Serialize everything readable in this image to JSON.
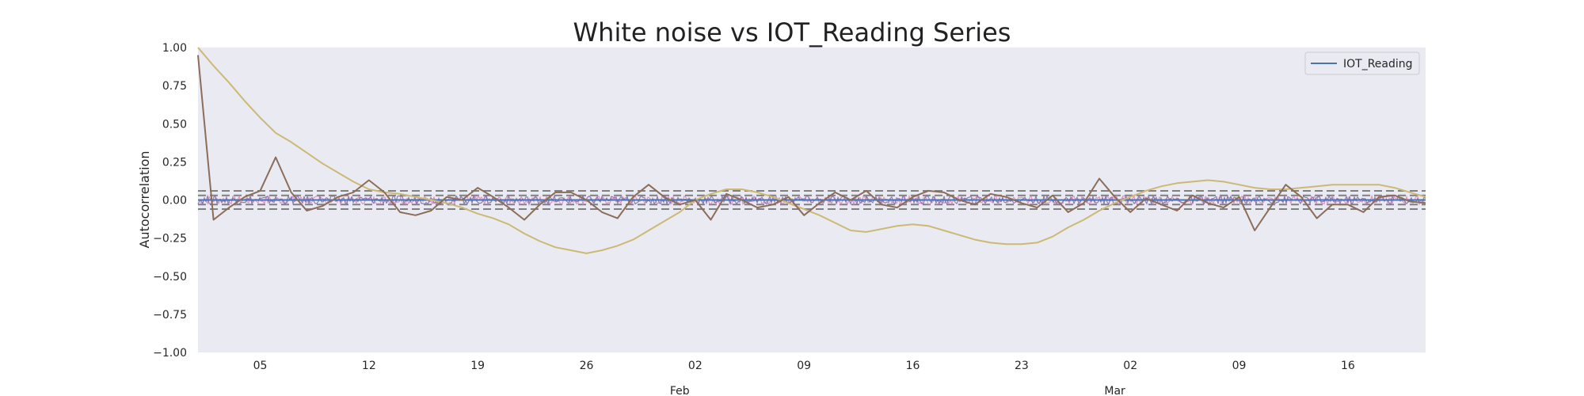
{
  "chart_data": {
    "type": "line",
    "title": "White noise vs IOT_Reading Series",
    "xlabel": "",
    "ylabel": "Autocorrelation",
    "x_range": [
      "2022-01-01",
      "2022-03-21"
    ],
    "ylim": [
      -1.0,
      1.0
    ],
    "y_ticks": [
      -1.0,
      -0.75,
      -0.5,
      -0.25,
      0.0,
      0.25,
      0.5,
      0.75,
      1.0
    ],
    "y_tick_labels": [
      "−1.00",
      "−0.75",
      "−0.50",
      "−0.25",
      "0.00",
      "0.25",
      "0.50",
      "0.75",
      "1.00"
    ],
    "x_ticks": [
      {
        "date": "2022-01-05",
        "label": "05"
      },
      {
        "date": "2022-01-12",
        "label": "12"
      },
      {
        "date": "2022-01-19",
        "label": "19"
      },
      {
        "date": "2022-01-26",
        "label": "26"
      },
      {
        "date": "2022-02-02",
        "label": "02"
      },
      {
        "date": "2022-02-09",
        "label": "09"
      },
      {
        "date": "2022-02-16",
        "label": "16"
      },
      {
        "date": "2022-02-23",
        "label": "23"
      },
      {
        "date": "2022-03-02",
        "label": "02"
      },
      {
        "date": "2022-03-09",
        "label": "09"
      },
      {
        "date": "2022-03-16",
        "label": "16"
      }
    ],
    "x_major_labels": [
      {
        "date": "2022-02-01",
        "label": "Feb"
      },
      {
        "date": "2022-03-01",
        "label": "Mar"
      }
    ],
    "confidence_bands": {
      "inner": [
        -0.03,
        0.03
      ],
      "outer": [
        -0.06,
        0.06
      ],
      "style": "dashed",
      "color": "#808080"
    },
    "zero_line": {
      "y": 0.0,
      "color": "#111111"
    },
    "grid": false,
    "background": "#EAEAF2",
    "legend": {
      "placement": "top-right",
      "entries": [
        {
          "label": "IOT_Reading",
          "color": "#4C72B0"
        }
      ]
    },
    "series": [
      {
        "name": "IOT_Reading",
        "color": "#4C72B0",
        "x": [
          "2022-01-01",
          "2022-03-21"
        ],
        "y": [
          0.0,
          0.0
        ]
      },
      {
        "color": "#CCB974",
        "x": [
          "2022-01-01",
          "2022-01-02",
          "2022-01-03",
          "2022-01-04",
          "2022-01-05",
          "2022-01-06",
          "2022-01-07",
          "2022-01-08",
          "2022-01-09",
          "2022-01-10",
          "2022-01-11",
          "2022-01-12",
          "2022-01-13",
          "2022-01-14",
          "2022-01-15",
          "2022-01-16",
          "2022-01-17",
          "2022-01-18",
          "2022-01-19",
          "2022-01-20",
          "2022-01-21",
          "2022-01-22",
          "2022-01-23",
          "2022-01-24",
          "2022-01-25",
          "2022-01-26",
          "2022-01-27",
          "2022-01-28",
          "2022-01-29",
          "2022-01-30",
          "2022-01-31",
          "2022-02-01",
          "2022-02-02",
          "2022-02-03",
          "2022-02-04",
          "2022-02-05",
          "2022-02-06",
          "2022-02-07",
          "2022-02-08",
          "2022-02-09",
          "2022-02-10",
          "2022-02-11",
          "2022-02-12",
          "2022-02-13",
          "2022-02-14",
          "2022-02-15",
          "2022-02-16",
          "2022-02-17",
          "2022-02-18",
          "2022-02-19",
          "2022-02-20",
          "2022-02-21",
          "2022-02-22",
          "2022-02-23",
          "2022-02-24",
          "2022-02-25",
          "2022-02-26",
          "2022-02-27",
          "2022-02-28",
          "2022-03-01",
          "2022-03-02",
          "2022-03-03",
          "2022-03-04",
          "2022-03-05",
          "2022-03-06",
          "2022-03-07",
          "2022-03-08",
          "2022-03-09",
          "2022-03-10",
          "2022-03-11",
          "2022-03-12",
          "2022-03-13",
          "2022-03-14",
          "2022-03-15",
          "2022-03-16",
          "2022-03-17",
          "2022-03-18",
          "2022-03-19",
          "2022-03-20",
          "2022-03-21"
        ],
        "y": [
          1.0,
          0.88,
          0.77,
          0.65,
          0.54,
          0.44,
          0.38,
          0.31,
          0.24,
          0.18,
          0.12,
          0.07,
          0.05,
          0.04,
          0.02,
          0.0,
          -0.02,
          -0.05,
          -0.09,
          -0.12,
          -0.16,
          -0.22,
          -0.27,
          -0.31,
          -0.33,
          -0.35,
          -0.33,
          -0.3,
          -0.26,
          -0.2,
          -0.14,
          -0.08,
          0.0,
          0.04,
          0.07,
          0.07,
          0.05,
          0.02,
          -0.02,
          -0.06,
          -0.1,
          -0.15,
          -0.2,
          -0.21,
          -0.19,
          -0.17,
          -0.16,
          -0.17,
          -0.2,
          -0.23,
          -0.26,
          -0.28,
          -0.29,
          -0.29,
          -0.28,
          -0.24,
          -0.18,
          -0.13,
          -0.07,
          -0.02,
          0.02,
          0.06,
          0.09,
          0.11,
          0.12,
          0.13,
          0.12,
          0.1,
          0.08,
          0.07,
          0.07,
          0.08,
          0.09,
          0.1,
          0.1,
          0.1,
          0.1,
          0.08,
          0.05,
          0.02
        ]
      },
      {
        "color": "#8C6D5A",
        "x": [
          "2022-01-01",
          "2022-01-02",
          "2022-01-03",
          "2022-01-04",
          "2022-01-05",
          "2022-01-06",
          "2022-01-07",
          "2022-01-08",
          "2022-01-09",
          "2022-01-10",
          "2022-01-11",
          "2022-01-12",
          "2022-01-13",
          "2022-01-14",
          "2022-01-15",
          "2022-01-16",
          "2022-01-17",
          "2022-01-18",
          "2022-01-19",
          "2022-01-20",
          "2022-01-21",
          "2022-01-22",
          "2022-01-23",
          "2022-01-24",
          "2022-01-25",
          "2022-01-26",
          "2022-01-27",
          "2022-01-28",
          "2022-01-29",
          "2022-01-30",
          "2022-01-31",
          "2022-02-01",
          "2022-02-02",
          "2022-02-03",
          "2022-02-04",
          "2022-02-05",
          "2022-02-06",
          "2022-02-07",
          "2022-02-08",
          "2022-02-09",
          "2022-02-10",
          "2022-02-11",
          "2022-02-12",
          "2022-02-13",
          "2022-02-14",
          "2022-02-15",
          "2022-02-16",
          "2022-02-17",
          "2022-02-18",
          "2022-02-19",
          "2022-02-20",
          "2022-02-21",
          "2022-02-22",
          "2022-02-23",
          "2022-02-24",
          "2022-02-25",
          "2022-02-26",
          "2022-02-27",
          "2022-02-28",
          "2022-03-01",
          "2022-03-02",
          "2022-03-03",
          "2022-03-04",
          "2022-03-05",
          "2022-03-06",
          "2022-03-07",
          "2022-03-08",
          "2022-03-09",
          "2022-03-10",
          "2022-03-11",
          "2022-03-12",
          "2022-03-13",
          "2022-03-14",
          "2022-03-15",
          "2022-03-16",
          "2022-03-17",
          "2022-03-18",
          "2022-03-19",
          "2022-03-20",
          "2022-03-21"
        ],
        "y": [
          0.95,
          -0.13,
          -0.05,
          0.02,
          0.06,
          0.28,
          0.05,
          -0.07,
          -0.04,
          0.02,
          0.05,
          0.13,
          0.05,
          -0.08,
          -0.1,
          -0.07,
          0.02,
          0.0,
          0.08,
          0.02,
          -0.05,
          -0.13,
          -0.03,
          0.05,
          0.05,
          0.0,
          -0.08,
          -0.12,
          0.02,
          0.1,
          0.02,
          -0.03,
          0.0,
          -0.13,
          0.04,
          0.0,
          -0.05,
          -0.03,
          0.02,
          -0.1,
          -0.02,
          0.05,
          0.0,
          0.06,
          -0.03,
          -0.05,
          0.02,
          0.06,
          0.05,
          0.0,
          -0.03,
          0.04,
          0.02,
          -0.02,
          -0.05,
          0.03,
          -0.08,
          -0.02,
          0.14,
          0.02,
          -0.08,
          0.01,
          -0.03,
          -0.07,
          0.03,
          -0.02,
          -0.05,
          0.02,
          -0.2,
          -0.05,
          0.1,
          0.02,
          -0.12,
          -0.03,
          -0.03,
          -0.08,
          0.02,
          0.03,
          -0.01,
          -0.02
        ]
      }
    ]
  }
}
